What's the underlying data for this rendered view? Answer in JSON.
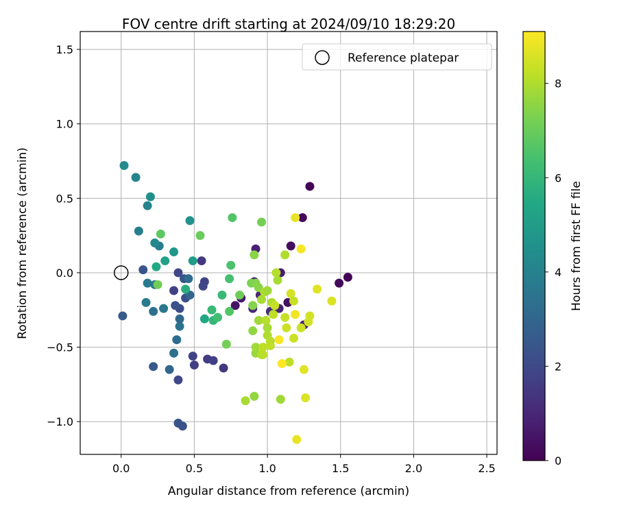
{
  "chart_data": {
    "type": "scatter",
    "title": "FOV centre drift starting at 2024/09/10 18:29:20",
    "xlabel": "Angular distance from reference (arcmin)",
    "ylabel": "Rotation from reference (arcmin)",
    "xlim": [
      -0.28,
      2.57
    ],
    "ylim": [
      -1.22,
      1.62
    ],
    "xticks": [
      0.0,
      0.5,
      1.0,
      1.5,
      2.0,
      2.5
    ],
    "xtick_labels": [
      "0.0",
      "0.5",
      "1.0",
      "1.5",
      "2.0",
      "2.5"
    ],
    "yticks": [
      -1.0,
      -0.5,
      0.0,
      0.5,
      1.0,
      1.5
    ],
    "ytick_labels": [
      "−1.0",
      "−0.5",
      "0.0",
      "0.5",
      "1.0",
      "1.5"
    ],
    "grid": true,
    "legend": {
      "position": "upper right",
      "entries": [
        "Reference platepar"
      ]
    },
    "reference_point": {
      "x": 0.0,
      "y": 0.0,
      "label": "Reference platepar"
    },
    "colorbar": {
      "label": "Hours from first FF file",
      "colormap": "viridis",
      "range": [
        0,
        9.1
      ],
      "ticks": [
        0,
        2,
        4,
        6,
        8
      ],
      "tick_labels": [
        "0",
        "2",
        "4",
        "6",
        "8"
      ]
    },
    "points": [
      {
        "x": 1.29,
        "y": 0.58,
        "h": 0.1
      },
      {
        "x": 1.24,
        "y": 0.37,
        "h": 0.2
      },
      {
        "x": 1.16,
        "y": 0.18,
        "h": 0.3
      },
      {
        "x": 1.49,
        "y": -0.07,
        "h": 0.2
      },
      {
        "x": 1.55,
        "y": -0.03,
        "h": 0.1
      },
      {
        "x": 0.92,
        "y": 0.16,
        "h": 0.8
      },
      {
        "x": 1.09,
        "y": 0.0,
        "h": 0.7
      },
      {
        "x": 0.82,
        "y": -0.17,
        "h": 0.6
      },
      {
        "x": 0.78,
        "y": -0.22,
        "h": 0.5
      },
      {
        "x": 0.91,
        "y": -0.06,
        "h": 0.9
      },
      {
        "x": 0.95,
        "y": -0.15,
        "h": 1.0
      },
      {
        "x": 1.14,
        "y": -0.2,
        "h": 0.4
      },
      {
        "x": 1.02,
        "y": -0.26,
        "h": 1.2
      },
      {
        "x": 1.08,
        "y": -0.24,
        "h": 0.9
      },
      {
        "x": 0.9,
        "y": -0.24,
        "h": 1.1
      },
      {
        "x": 1.25,
        "y": -0.35,
        "h": 0.8
      },
      {
        "x": 0.55,
        "y": 0.08,
        "h": 1.5
      },
      {
        "x": 0.57,
        "y": -0.06,
        "h": 1.8
      },
      {
        "x": 0.56,
        "y": -0.09,
        "h": 1.9
      },
      {
        "x": 0.59,
        "y": -0.58,
        "h": 1.6
      },
      {
        "x": 0.63,
        "y": -0.59,
        "h": 1.7
      },
      {
        "x": 0.7,
        "y": -0.64,
        "h": 1.5
      },
      {
        "x": 0.5,
        "y": -0.62,
        "h": 1.7
      },
      {
        "x": 0.49,
        "y": -0.56,
        "h": 1.8
      },
      {
        "x": 0.39,
        "y": 0.0,
        "h": 1.9
      },
      {
        "x": 0.36,
        "y": -0.12,
        "h": 1.7
      },
      {
        "x": 0.4,
        "y": -0.24,
        "h": 2.1
      },
      {
        "x": 0.37,
        "y": -0.22,
        "h": 2.3
      },
      {
        "x": 0.43,
        "y": -0.04,
        "h": 2.4
      },
      {
        "x": 0.44,
        "y": -0.17,
        "h": 2.2
      },
      {
        "x": 0.15,
        "y": 0.02,
        "h": 2.4
      },
      {
        "x": 0.01,
        "y": -0.29,
        "h": 2.6
      },
      {
        "x": 0.22,
        "y": -0.63,
        "h": 2.5
      },
      {
        "x": 0.39,
        "y": -0.72,
        "h": 2.0
      },
      {
        "x": 0.39,
        "y": -1.01,
        "h": 2.4
      },
      {
        "x": 0.42,
        "y": -1.03,
        "h": 2.3
      },
      {
        "x": 0.33,
        "y": -0.65,
        "h": 3.0
      },
      {
        "x": 0.36,
        "y": -0.54,
        "h": 3.3
      },
      {
        "x": 0.38,
        "y": -0.45,
        "h": 3.2
      },
      {
        "x": 0.4,
        "y": -0.36,
        "h": 3.5
      },
      {
        "x": 0.4,
        "y": -0.31,
        "h": 3.1
      },
      {
        "x": 0.47,
        "y": -0.15,
        "h": 3.0
      },
      {
        "x": 0.46,
        "y": -0.04,
        "h": 3.2
      },
      {
        "x": 0.29,
        "y": -0.24,
        "h": 3.6
      },
      {
        "x": 0.22,
        "y": -0.26,
        "h": 3.4
      },
      {
        "x": 0.17,
        "y": -0.2,
        "h": 3.8
      },
      {
        "x": 0.18,
        "y": -0.07,
        "h": 3.7
      },
      {
        "x": 0.23,
        "y": -0.08,
        "h": 3.6
      },
      {
        "x": 0.12,
        "y": 0.28,
        "h": 3.9
      },
      {
        "x": 0.26,
        "y": 0.18,
        "h": 3.8
      },
      {
        "x": 0.23,
        "y": 0.2,
        "h": 4.2
      },
      {
        "x": 0.1,
        "y": 0.64,
        "h": 4.1
      },
      {
        "x": 0.02,
        "y": 0.72,
        "h": 4.3
      },
      {
        "x": 0.18,
        "y": 0.45,
        "h": 4.0
      },
      {
        "x": 0.2,
        "y": 0.51,
        "h": 4.5
      },
      {
        "x": 0.47,
        "y": 0.35,
        "h": 4.6
      },
      {
        "x": 0.36,
        "y": 0.14,
        "h": 4.8
      },
      {
        "x": 0.3,
        "y": 0.08,
        "h": 5.2
      },
      {
        "x": 0.24,
        "y": 0.04,
        "h": 5.5
      },
      {
        "x": 0.49,
        "y": 0.08,
        "h": 5.0
      },
      {
        "x": 0.44,
        "y": -0.11,
        "h": 5.7
      },
      {
        "x": 0.57,
        "y": -0.31,
        "h": 5.4
      },
      {
        "x": 0.63,
        "y": -0.32,
        "h": 6.0
      },
      {
        "x": 0.62,
        "y": -0.25,
        "h": 6.1
      },
      {
        "x": 0.66,
        "y": -0.3,
        "h": 6.3
      },
      {
        "x": 0.69,
        "y": -0.15,
        "h": 6.1
      },
      {
        "x": 0.74,
        "y": -0.26,
        "h": 6.6
      },
      {
        "x": 0.74,
        "y": -0.04,
        "h": 6.4
      },
      {
        "x": 0.75,
        "y": 0.05,
        "h": 6.5
      },
      {
        "x": 0.76,
        "y": 0.37,
        "h": 6.6
      },
      {
        "x": 0.27,
        "y": 0.26,
        "h": 6.8
      },
      {
        "x": 0.54,
        "y": 0.25,
        "h": 7.0
      },
      {
        "x": 0.25,
        "y": -0.08,
        "h": 7.1
      },
      {
        "x": 0.72,
        "y": -0.48,
        "h": 7.2
      },
      {
        "x": 0.81,
        "y": -0.15,
        "h": 7.1
      },
      {
        "x": 0.89,
        "y": -0.07,
        "h": 7.3
      },
      {
        "x": 0.91,
        "y": 0.12,
        "h": 7.5
      },
      {
        "x": 0.96,
        "y": 0.34,
        "h": 7.2
      },
      {
        "x": 0.92,
        "y": -0.07,
        "h": 7.4
      },
      {
        "x": 0.94,
        "y": -0.1,
        "h": 7.5
      },
      {
        "x": 0.9,
        "y": -0.22,
        "h": 7.4
      },
      {
        "x": 0.9,
        "y": -0.39,
        "h": 7.6
      },
      {
        "x": 0.92,
        "y": -0.54,
        "h": 7.7
      },
      {
        "x": 0.92,
        "y": -0.5,
        "h": 7.8
      },
      {
        "x": 0.91,
        "y": -0.83,
        "h": 7.6
      },
      {
        "x": 0.85,
        "y": -0.86,
        "h": 7.9
      },
      {
        "x": 0.94,
        "y": -0.32,
        "h": 7.8
      },
      {
        "x": 0.96,
        "y": -0.18,
        "h": 7.9
      },
      {
        "x": 0.98,
        "y": -0.13,
        "h": 8.0
      },
      {
        "x": 1.0,
        "y": -0.12,
        "h": 7.8
      },
      {
        "x": 0.99,
        "y": -0.32,
        "h": 8.1
      },
      {
        "x": 1.0,
        "y": -0.37,
        "h": 7.9
      },
      {
        "x": 1.0,
        "y": -0.42,
        "h": 8.0
      },
      {
        "x": 1.02,
        "y": -0.46,
        "h": 8.1
      },
      {
        "x": 1.02,
        "y": -0.49,
        "h": 8.2
      },
      {
        "x": 0.97,
        "y": -0.5,
        "h": 8.2
      },
      {
        "x": 0.97,
        "y": -0.55,
        "h": 8.3
      },
      {
        "x": 0.96,
        "y": -0.55,
        "h": 8.1
      },
      {
        "x": 1.03,
        "y": -0.2,
        "h": 8.0
      },
      {
        "x": 1.04,
        "y": -0.28,
        "h": 8.2
      },
      {
        "x": 1.05,
        "y": -0.22,
        "h": 8.3
      },
      {
        "x": 1.06,
        "y": 0.0,
        "h": 8.1
      },
      {
        "x": 1.07,
        "y": -0.05,
        "h": 7.9
      },
      {
        "x": 1.09,
        "y": -0.85,
        "h": 7.8
      },
      {
        "x": 1.12,
        "y": -0.3,
        "h": 8.3
      },
      {
        "x": 1.13,
        "y": -0.37,
        "h": 8.4
      },
      {
        "x": 1.12,
        "y": 0.12,
        "h": 8.0
      },
      {
        "x": 1.15,
        "y": -0.6,
        "h": 8.2
      },
      {
        "x": 1.16,
        "y": -0.14,
        "h": 8.5
      },
      {
        "x": 1.18,
        "y": -0.44,
        "h": 8.4
      },
      {
        "x": 1.18,
        "y": -0.19,
        "h": 8.3
      },
      {
        "x": 1.19,
        "y": 0.37,
        "h": 8.8
      },
      {
        "x": 1.23,
        "y": -0.37,
        "h": 8.4
      },
      {
        "x": 1.25,
        "y": -0.65,
        "h": 8.7
      },
      {
        "x": 1.26,
        "y": -0.84,
        "h": 8.6
      },
      {
        "x": 1.28,
        "y": -0.33,
        "h": 8.5
      },
      {
        "x": 1.29,
        "y": -0.29,
        "h": 8.5
      },
      {
        "x": 1.23,
        "y": 0.16,
        "h": 9.0
      },
      {
        "x": 1.19,
        "y": -0.28,
        "h": 8.9
      },
      {
        "x": 1.08,
        "y": -0.45,
        "h": 9.0
      },
      {
        "x": 1.1,
        "y": -0.61,
        "h": 9.1
      },
      {
        "x": 1.2,
        "y": -1.12,
        "h": 8.8
      },
      {
        "x": 1.34,
        "y": -0.11,
        "h": 8.7
      },
      {
        "x": 1.44,
        "y": -0.19,
        "h": 8.6
      }
    ]
  }
}
